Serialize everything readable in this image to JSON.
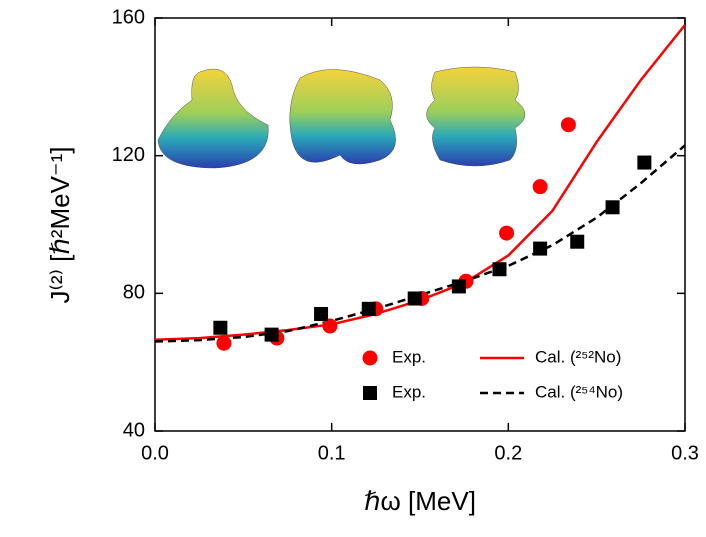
{
  "chart_data": {
    "type": "line",
    "x_label": "ℏω [MeV]",
    "y_label": "J⁽²⁾ [ℏ²MeV⁻¹]",
    "xlim": [
      0,
      0.3
    ],
    "xticks": [
      {
        "value": 0,
        "label": "0.0"
      },
      0.1,
      0.2,
      0.3
    ],
    "ylim": [
      40,
      160
    ],
    "yticks": [
      40,
      80,
      120,
      160
    ],
    "series": [
      {
        "name": "Exp.",
        "color": "#ff0000",
        "marker": "circle",
        "line_style": "none",
        "x": [
          0.039,
          0.069,
          0.099,
          0.125,
          0.151,
          0.176,
          0.199,
          0.218,
          0.234
        ],
        "values": [
          65.5,
          67,
          70.5,
          75.5,
          78.5,
          83.5,
          97.5,
          111,
          129
        ]
      },
      {
        "name": "Exp.",
        "color": "#000000",
        "marker": "square",
        "line_style": "none",
        "x": [
          0.037,
          0.066,
          0.094,
          0.121,
          0.147,
          0.172,
          0.195,
          0.218,
          0.239,
          0.259,
          0.277
        ],
        "values": [
          70,
          68,
          74,
          75.5,
          78.5,
          82,
          87,
          93,
          95,
          105,
          118
        ]
      },
      {
        "name": "Cal. (²⁵²No)",
        "color": "#ff0000",
        "marker": "none",
        "line_style": "solid",
        "x": [
          0,
          0.025,
          0.05,
          0.075,
          0.1,
          0.125,
          0.15,
          0.175,
          0.2,
          0.225,
          0.25,
          0.275,
          0.3
        ],
        "values": [
          66.5,
          67,
          68,
          69.3,
          71,
          74,
          78,
          83,
          91,
          104,
          124,
          142,
          158
        ]
      },
      {
        "name": "Cal. (²⁵⁴No)",
        "color": "#000000",
        "marker": "none",
        "line_style": "dashed",
        "x": [
          0,
          0.025,
          0.05,
          0.075,
          0.1,
          0.125,
          0.15,
          0.175,
          0.2,
          0.225,
          0.25,
          0.275,
          0.3
        ],
        "values": [
          66,
          66.4,
          67.3,
          69,
          72,
          75.5,
          79.5,
          83.5,
          88,
          94,
          102,
          112,
          123
        ]
      }
    ]
  }
}
